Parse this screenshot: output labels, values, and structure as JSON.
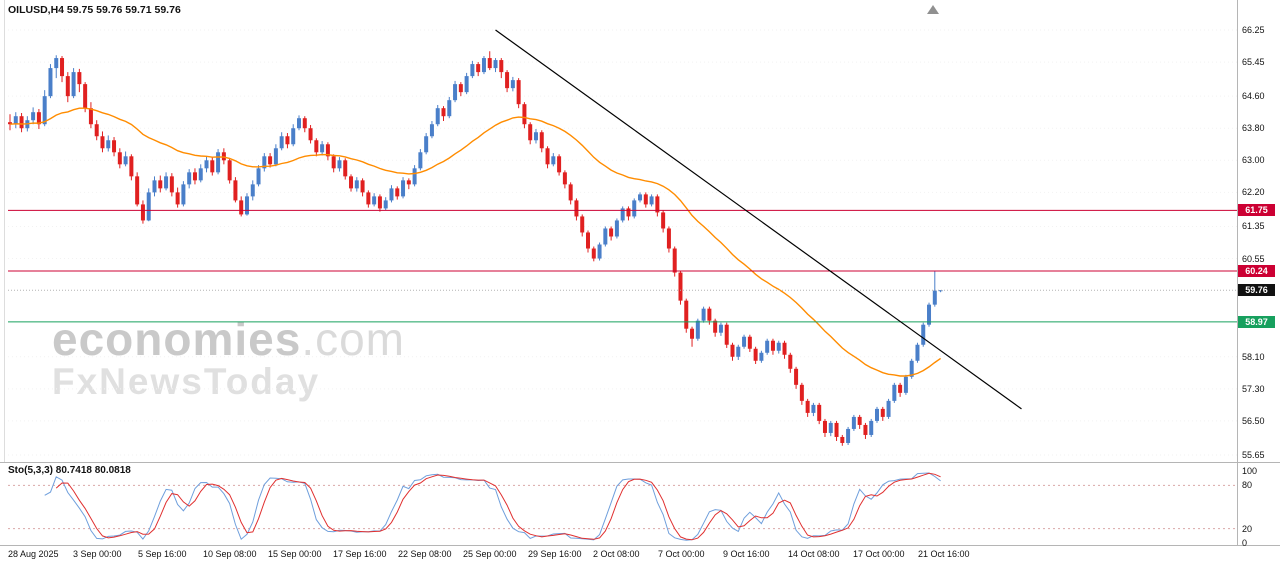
{
  "header": {
    "symbol_info": "OILUSD,H4 59.75 59.76 59.71 59.76"
  },
  "watermark": {
    "brand": "economies",
    "brand_suffix": ".com",
    "subbrand": "FxNewsToday"
  },
  "indicator": {
    "label": "Sto(5,3,3) 80.7418 80.0818"
  },
  "colors": {
    "bull": "#4a7fc9",
    "bear": "#e02020",
    "ma": "#ff8c00",
    "trendline": "#000000",
    "sto_k": "#6f9fdc",
    "sto_d": "#e03030",
    "axis_text": "#111111",
    "separator": "#b5b5b5",
    "level_dash": "#d9a7a7",
    "grid": "#f2f2f2",
    "current_tag": "#111111",
    "resistance": "#cc0033",
    "support": "#17a05e",
    "marker": "#909090"
  },
  "chart_data": {
    "type": "candlestick",
    "symbol": "OILUSD",
    "timeframe": "H4",
    "title": "OILUSD H4 candlestick chart with EMA, descending trendline and Stochastic(5,3,3)",
    "ylim": [
      55.65,
      66.25
    ],
    "y_tick_labels": [
      "66.25",
      "65.45",
      "64.60",
      "63.80",
      "63.00",
      "62.20",
      "61.35",
      "60.55",
      "58.10",
      "57.30",
      "56.50",
      "55.65"
    ],
    "x_tick_labels": [
      "28 Aug 2025",
      "3 Sep 00:00",
      "5 Sep 16:00",
      "10 Sep 08:00",
      "15 Sep 00:00",
      "17 Sep 16:00",
      "22 Sep 08:00",
      "25 Sep 00:00",
      "29 Sep 16:00",
      "2 Oct 08:00",
      "7 Oct 00:00",
      "9 Oct 16:00",
      "14 Oct 08:00",
      "17 Oct 00:00",
      "21 Oct 16:00"
    ],
    "ohlc": [
      [
        63.95,
        64.15,
        63.75,
        63.9
      ],
      [
        63.9,
        64.2,
        63.8,
        64.1
      ],
      [
        64.1,
        64.18,
        63.7,
        63.8
      ],
      [
        63.8,
        64.1,
        63.72,
        64.0
      ],
      [
        64.0,
        64.32,
        63.9,
        64.2
      ],
      [
        64.2,
        64.28,
        63.78,
        63.9
      ],
      [
        63.9,
        64.75,
        63.85,
        64.6
      ],
      [
        64.6,
        65.4,
        64.55,
        65.3
      ],
      [
        65.3,
        65.62,
        65.05,
        65.55
      ],
      [
        65.55,
        65.6,
        64.95,
        65.1
      ],
      [
        65.1,
        65.2,
        64.45,
        64.6
      ],
      [
        64.6,
        65.3,
        64.55,
        65.2
      ],
      [
        65.2,
        65.28,
        64.7,
        64.9
      ],
      [
        64.9,
        64.95,
        64.2,
        64.3
      ],
      [
        64.3,
        64.45,
        63.8,
        63.9
      ],
      [
        63.9,
        64.0,
        63.5,
        63.6
      ],
      [
        63.6,
        63.72,
        63.2,
        63.3
      ],
      [
        63.3,
        63.62,
        63.22,
        63.5
      ],
      [
        63.5,
        63.58,
        63.1,
        63.2
      ],
      [
        63.2,
        63.3,
        62.8,
        62.9
      ],
      [
        62.9,
        63.22,
        62.85,
        63.1
      ],
      [
        63.1,
        63.15,
        62.5,
        62.6
      ],
      [
        62.6,
        62.7,
        61.85,
        61.9
      ],
      [
        61.9,
        62.0,
        61.42,
        61.5
      ],
      [
        61.5,
        62.3,
        61.48,
        62.2
      ],
      [
        62.2,
        62.6,
        62.1,
        62.5
      ],
      [
        62.5,
        62.62,
        62.2,
        62.3
      ],
      [
        62.3,
        62.7,
        62.25,
        62.6
      ],
      [
        62.6,
        62.68,
        62.1,
        62.2
      ],
      [
        62.2,
        62.32,
        61.82,
        61.9
      ],
      [
        61.9,
        62.48,
        61.85,
        62.4
      ],
      [
        62.4,
        62.78,
        62.3,
        62.7
      ],
      [
        62.7,
        62.8,
        62.4,
        62.5
      ],
      [
        62.5,
        62.9,
        62.45,
        62.8
      ],
      [
        62.8,
        63.1,
        62.7,
        63.0
      ],
      [
        63.0,
        63.08,
        62.62,
        62.7
      ],
      [
        62.7,
        63.28,
        62.65,
        63.2
      ],
      [
        63.2,
        63.3,
        62.9,
        63.0
      ],
      [
        63.0,
        63.05,
        62.42,
        62.5
      ],
      [
        62.5,
        62.58,
        61.95,
        62.0
      ],
      [
        62.0,
        62.1,
        61.6,
        61.65
      ],
      [
        61.65,
        62.18,
        61.62,
        62.1
      ],
      [
        62.1,
        62.5,
        62.0,
        62.4
      ],
      [
        62.4,
        62.88,
        62.35,
        62.8
      ],
      [
        62.8,
        63.18,
        62.72,
        63.1
      ],
      [
        63.1,
        63.18,
        62.82,
        62.9
      ],
      [
        62.9,
        63.4,
        62.85,
        63.3
      ],
      [
        63.3,
        63.7,
        63.25,
        63.6
      ],
      [
        63.6,
        63.68,
        63.3,
        63.4
      ],
      [
        63.4,
        63.9,
        63.35,
        63.8
      ],
      [
        63.8,
        64.12,
        63.75,
        64.05
      ],
      [
        64.05,
        64.1,
        63.7,
        63.8
      ],
      [
        63.8,
        63.88,
        63.42,
        63.5
      ],
      [
        63.5,
        63.55,
        63.1,
        63.2
      ],
      [
        63.2,
        63.48,
        63.12,
        63.4
      ],
      [
        63.4,
        63.45,
        63.0,
        63.1
      ],
      [
        63.1,
        63.15,
        62.7,
        62.8
      ],
      [
        62.8,
        63.08,
        62.72,
        63.0
      ],
      [
        63.0,
        63.05,
        62.52,
        62.6
      ],
      [
        62.6,
        62.65,
        62.22,
        62.3
      ],
      [
        62.3,
        62.58,
        62.22,
        62.5
      ],
      [
        62.5,
        62.55,
        62.1,
        62.2
      ],
      [
        62.2,
        62.25,
        61.82,
        61.9
      ],
      [
        61.9,
        62.18,
        61.85,
        62.1
      ],
      [
        62.1,
        62.15,
        61.72,
        61.8
      ],
      [
        61.8,
        62.08,
        61.75,
        62.0
      ],
      [
        62.0,
        62.38,
        61.95,
        62.3
      ],
      [
        62.3,
        62.35,
        62.02,
        62.1
      ],
      [
        62.1,
        62.58,
        62.05,
        62.5
      ],
      [
        62.5,
        62.55,
        62.28,
        62.4
      ],
      [
        62.4,
        62.88,
        62.35,
        62.8
      ],
      [
        62.8,
        63.28,
        62.75,
        63.2
      ],
      [
        63.2,
        63.68,
        63.15,
        63.6
      ],
      [
        63.6,
        63.98,
        63.55,
        63.9
      ],
      [
        63.9,
        64.38,
        63.85,
        64.3
      ],
      [
        64.3,
        64.35,
        63.98,
        64.1
      ],
      [
        64.1,
        64.58,
        64.05,
        64.5
      ],
      [
        64.5,
        64.98,
        64.45,
        64.9
      ],
      [
        64.9,
        64.95,
        64.6,
        64.7
      ],
      [
        64.7,
        65.18,
        64.65,
        65.1
      ],
      [
        65.1,
        65.48,
        65.05,
        65.4
      ],
      [
        65.4,
        65.45,
        65.1,
        65.2
      ],
      [
        65.2,
        65.6,
        65.15,
        65.55
      ],
      [
        65.55,
        65.72,
        65.25,
        65.3
      ],
      [
        65.3,
        65.55,
        65.2,
        65.5
      ],
      [
        65.5,
        65.55,
        65.05,
        65.2
      ],
      [
        65.2,
        65.25,
        64.7,
        64.8
      ],
      [
        64.8,
        65.08,
        64.72,
        65.0
      ],
      [
        65.0,
        65.05,
        64.3,
        64.4
      ],
      [
        64.4,
        64.45,
        63.8,
        63.9
      ],
      [
        63.9,
        63.95,
        63.4,
        63.5
      ],
      [
        63.5,
        63.78,
        63.42,
        63.7
      ],
      [
        63.7,
        63.75,
        63.2,
        63.3
      ],
      [
        63.3,
        63.35,
        62.8,
        62.9
      ],
      [
        62.9,
        63.18,
        62.85,
        63.1
      ],
      [
        63.1,
        63.15,
        62.62,
        62.7
      ],
      [
        62.7,
        62.75,
        62.3,
        62.4
      ],
      [
        62.4,
        62.45,
        61.9,
        62.0
      ],
      [
        62.0,
        62.05,
        61.5,
        61.6
      ],
      [
        61.6,
        61.65,
        61.1,
        61.2
      ],
      [
        61.2,
        61.25,
        60.7,
        60.8
      ],
      [
        60.8,
        60.85,
        60.48,
        60.55
      ],
      [
        60.55,
        60.95,
        60.5,
        60.9
      ],
      [
        60.9,
        61.35,
        60.85,
        61.3
      ],
      [
        61.3,
        61.35,
        61.0,
        61.1
      ],
      [
        61.1,
        61.55,
        61.05,
        61.5
      ],
      [
        61.5,
        61.85,
        61.45,
        61.8
      ],
      [
        61.8,
        61.85,
        61.5,
        61.6
      ],
      [
        61.6,
        62.05,
        61.55,
        62.0
      ],
      [
        62.0,
        62.2,
        61.95,
        62.15
      ],
      [
        62.15,
        62.2,
        61.82,
        61.9
      ],
      [
        61.9,
        62.15,
        61.85,
        62.1
      ],
      [
        62.1,
        62.15,
        61.6,
        61.7
      ],
      [
        61.7,
        61.75,
        61.2,
        61.3
      ],
      [
        61.3,
        61.35,
        60.7,
        60.8
      ],
      [
        60.8,
        60.85,
        60.1,
        60.2
      ],
      [
        60.2,
        60.25,
        59.4,
        59.5
      ],
      [
        59.5,
        59.55,
        58.7,
        58.8
      ],
      [
        58.8,
        58.85,
        58.35,
        58.55
      ],
      [
        58.55,
        59.05,
        58.5,
        59.0
      ],
      [
        59.0,
        59.35,
        58.95,
        59.3
      ],
      [
        59.3,
        59.35,
        58.9,
        59.0
      ],
      [
        59.0,
        59.05,
        58.6,
        58.7
      ],
      [
        58.7,
        58.95,
        58.62,
        58.9
      ],
      [
        58.9,
        58.95,
        58.32,
        58.4
      ],
      [
        58.4,
        58.45,
        58.0,
        58.1
      ],
      [
        58.1,
        58.4,
        58.02,
        58.35
      ],
      [
        58.35,
        58.65,
        58.3,
        58.6
      ],
      [
        58.6,
        58.65,
        58.22,
        58.3
      ],
      [
        58.3,
        58.35,
        57.92,
        58.0
      ],
      [
        58.0,
        58.25,
        57.95,
        58.2
      ],
      [
        58.2,
        58.55,
        58.15,
        58.5
      ],
      [
        58.5,
        58.55,
        58.15,
        58.25
      ],
      [
        58.25,
        58.5,
        58.18,
        58.45
      ],
      [
        58.45,
        58.5,
        58.05,
        58.15
      ],
      [
        58.15,
        58.2,
        57.7,
        57.8
      ],
      [
        57.8,
        57.85,
        57.3,
        57.4
      ],
      [
        57.4,
        57.45,
        56.9,
        57.0
      ],
      [
        57.0,
        57.05,
        56.6,
        56.7
      ],
      [
        56.7,
        56.95,
        56.62,
        56.9
      ],
      [
        56.9,
        56.95,
        56.42,
        56.5
      ],
      [
        56.5,
        56.55,
        56.1,
        56.2
      ],
      [
        56.2,
        56.5,
        56.12,
        56.45
      ],
      [
        56.45,
        56.5,
        56.0,
        56.1
      ],
      [
        56.1,
        56.15,
        55.88,
        55.95
      ],
      [
        55.95,
        56.35,
        55.9,
        56.3
      ],
      [
        56.3,
        56.65,
        56.25,
        56.6
      ],
      [
        56.6,
        56.65,
        56.3,
        56.4
      ],
      [
        56.4,
        56.45,
        56.05,
        56.15
      ],
      [
        56.15,
        56.55,
        56.1,
        56.5
      ],
      [
        56.5,
        56.85,
        56.45,
        56.8
      ],
      [
        56.8,
        56.85,
        56.5,
        56.6
      ],
      [
        56.6,
        57.05,
        56.55,
        57.0
      ],
      [
        57.0,
        57.45,
        56.95,
        57.4
      ],
      [
        57.4,
        57.45,
        57.1,
        57.2
      ],
      [
        57.2,
        57.65,
        57.15,
        57.6
      ],
      [
        57.6,
        58.05,
        57.55,
        58.0
      ],
      [
        58.0,
        58.45,
        57.95,
        58.4
      ],
      [
        58.4,
        58.95,
        58.35,
        58.9
      ],
      [
        58.9,
        59.45,
        58.85,
        59.4
      ],
      [
        59.4,
        60.24,
        59.35,
        59.75
      ],
      [
        59.75,
        59.76,
        59.71,
        59.76
      ]
    ],
    "ma": {
      "type": "EMA",
      "period": 34
    },
    "trendline": {
      "from_index": 84,
      "from_price": 66.25,
      "to_index": 175,
      "to_price": 56.8
    },
    "hlines": [
      {
        "price": 61.75,
        "label": "61.75",
        "color": "#cc0033",
        "style": "solid"
      },
      {
        "price": 60.24,
        "label": "60.24",
        "color": "#cc0033",
        "style": "solid"
      },
      {
        "price": 59.76,
        "label": "59.76",
        "color": "#b3b3b3",
        "style": "dotted",
        "tag_bg": "#111111"
      },
      {
        "price": 58.97,
        "label": "58.97",
        "color": "#17a05e",
        "style": "solid"
      }
    ],
    "stochastic": {
      "k": 5,
      "d": 3,
      "slowing": 3,
      "levels": [
        80,
        20
      ],
      "scale_labels": [
        "100",
        "80",
        "20",
        "0"
      ],
      "last_k": 80.7418,
      "last_d": 80.0818,
      "range": [
        0,
        100
      ]
    }
  }
}
